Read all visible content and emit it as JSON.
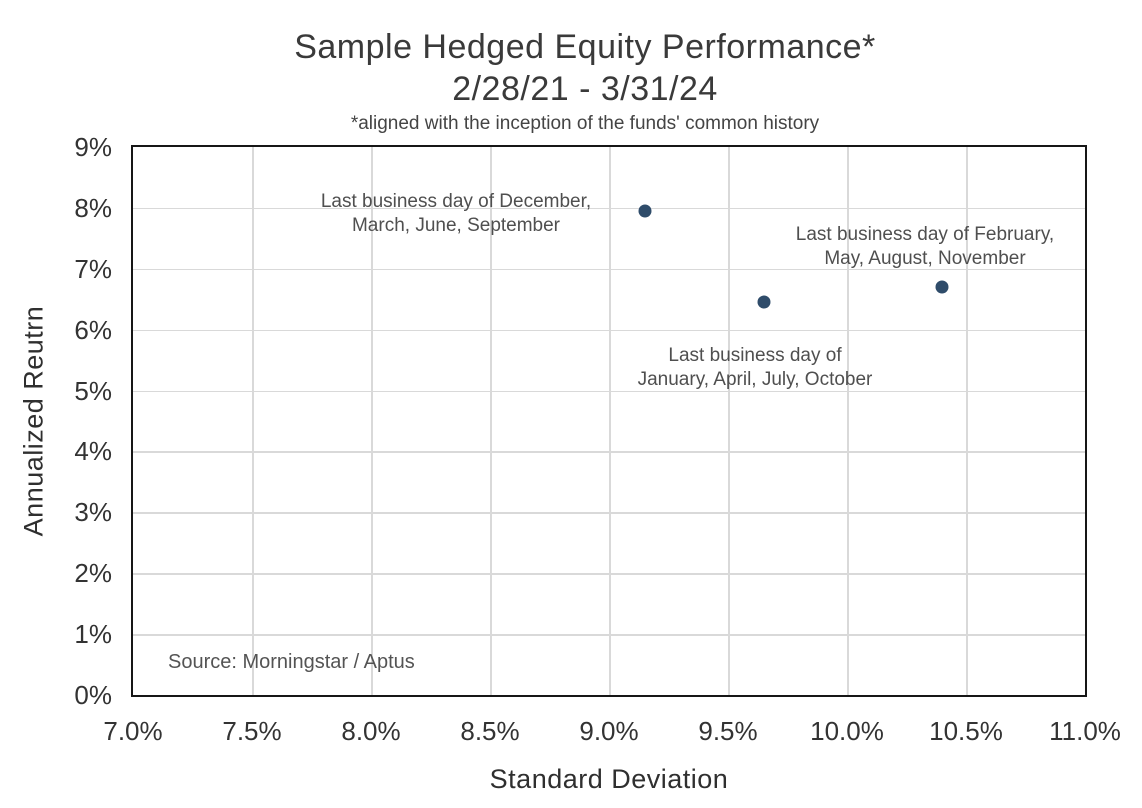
{
  "header": {
    "title": "Sample Hedged Equity Performance*",
    "subtitle": "2/28/21 - 3/31/24",
    "note": "*aligned with the inception of the funds' common history"
  },
  "chart_data": {
    "type": "scatter",
    "title": "Sample Hedged Equity Performance*",
    "subtitle": "2/28/21 - 3/31/24",
    "note": "*aligned with the inception of the funds' common history",
    "xlabel": "Standard Deviation",
    "ylabel": "Annualized Reutrn",
    "xlim": [
      7.0,
      11.0
    ],
    "ylim": [
      0,
      9
    ],
    "x_ticks": [
      "7.0%",
      "7.5%",
      "8.0%",
      "8.5%",
      "9.0%",
      "9.5%",
      "10.0%",
      "10.5%",
      "11.0%"
    ],
    "y_ticks": [
      "0%",
      "1%",
      "2%",
      "3%",
      "4%",
      "5%",
      "6%",
      "7%",
      "8%",
      "9%"
    ],
    "grid": true,
    "legend": "none",
    "point_color": "#2f4c6a",
    "points": [
      {
        "x": 9.15,
        "y": 7.95,
        "label": "Last business day of December, March, June, September",
        "label_lines": [
          "Last business day of December,",
          "March, June, September"
        ]
      },
      {
        "x": 9.65,
        "y": 6.45,
        "label": "Last business day of January, April, July, October",
        "label_lines": [
          "Last business day of",
          "January, April, July, October"
        ]
      },
      {
        "x": 10.4,
        "y": 6.7,
        "label": "Last business day of February, May, August, November",
        "label_lines": [
          "Last business day of February,",
          "May, August, November"
        ]
      }
    ],
    "source": "Source: Morningstar / Aptus"
  },
  "source": {
    "text": "Source: Morningstar / Aptus"
  }
}
